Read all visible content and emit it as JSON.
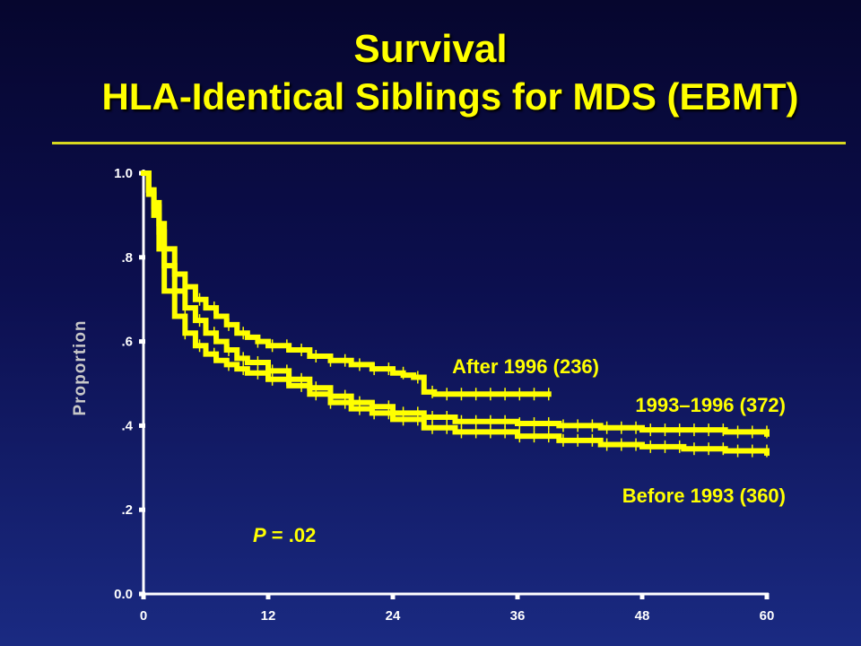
{
  "title": "Survival",
  "subtitle": "HLA-Identical Siblings for MDS (EBMT)",
  "ylabel": "Proportion",
  "p_value_prefix": "P",
  "p_value_rest": " = .02",
  "colors": {
    "curve": "#ffff00",
    "title": "#ffff00",
    "axis": "#ffffff",
    "background": "#0c0f4f"
  },
  "chart_data": {
    "type": "line",
    "xlim": [
      0,
      60
    ],
    "ylim": [
      0,
      1.0
    ],
    "x_ticks": [
      "0",
      "12",
      "24",
      "36",
      "48",
      "60"
    ],
    "x_tick_values": [
      0,
      12,
      24,
      36,
      48,
      60
    ],
    "y_ticks": [
      "0.0",
      ".2",
      ".4",
      ".6",
      ".8",
      "1.0"
    ],
    "y_tick_values": [
      0.0,
      0.2,
      0.4,
      0.6,
      0.8,
      1.0
    ],
    "grid": false,
    "series": [
      {
        "name": "After 1996 (236)",
        "x": [
          0,
          0.5,
          1,
          1.5,
          2,
          3,
          4,
          5,
          6,
          7,
          8,
          9,
          10,
          11,
          12,
          14,
          16,
          18,
          20,
          22,
          24,
          25,
          26,
          27,
          28,
          30,
          34,
          38,
          39
        ],
        "y": [
          1.0,
          0.96,
          0.93,
          0.88,
          0.82,
          0.76,
          0.73,
          0.7,
          0.68,
          0.66,
          0.64,
          0.62,
          0.61,
          0.6,
          0.59,
          0.58,
          0.565,
          0.555,
          0.545,
          0.535,
          0.525,
          0.52,
          0.515,
          0.48,
          0.475,
          0.475,
          0.475,
          0.475,
          0.475
        ]
      },
      {
        "name": "1993–1996 (372)",
        "x": [
          0,
          0.5,
          1,
          1.5,
          2,
          3,
          4,
          5,
          6,
          7,
          8,
          9,
          10,
          12,
          14,
          16,
          18,
          20,
          22,
          24,
          27,
          30,
          36,
          40,
          44,
          48,
          52,
          56,
          60
        ],
        "y": [
          1.0,
          0.96,
          0.92,
          0.86,
          0.78,
          0.72,
          0.68,
          0.65,
          0.62,
          0.6,
          0.58,
          0.56,
          0.55,
          0.53,
          0.51,
          0.49,
          0.47,
          0.455,
          0.445,
          0.43,
          0.42,
          0.41,
          0.405,
          0.4,
          0.395,
          0.39,
          0.39,
          0.385,
          0.38
        ]
      },
      {
        "name": "Before 1993 (360)",
        "x": [
          0,
          0.5,
          1,
          1.5,
          2,
          3,
          4,
          5,
          6,
          7,
          8,
          9,
          10,
          12,
          14,
          16,
          18,
          20,
          22,
          24,
          27,
          30,
          36,
          40,
          44,
          48,
          52,
          56,
          60
        ],
        "y": [
          1.0,
          0.95,
          0.9,
          0.82,
          0.72,
          0.66,
          0.62,
          0.59,
          0.57,
          0.555,
          0.545,
          0.535,
          0.525,
          0.51,
          0.495,
          0.475,
          0.455,
          0.44,
          0.43,
          0.415,
          0.395,
          0.385,
          0.375,
          0.365,
          0.355,
          0.35,
          0.345,
          0.34,
          0.335
        ]
      }
    ],
    "annotations": [
      "After 1996 (236)",
      "1993–1996 (372)",
      "Before 1993 (360)"
    ]
  }
}
